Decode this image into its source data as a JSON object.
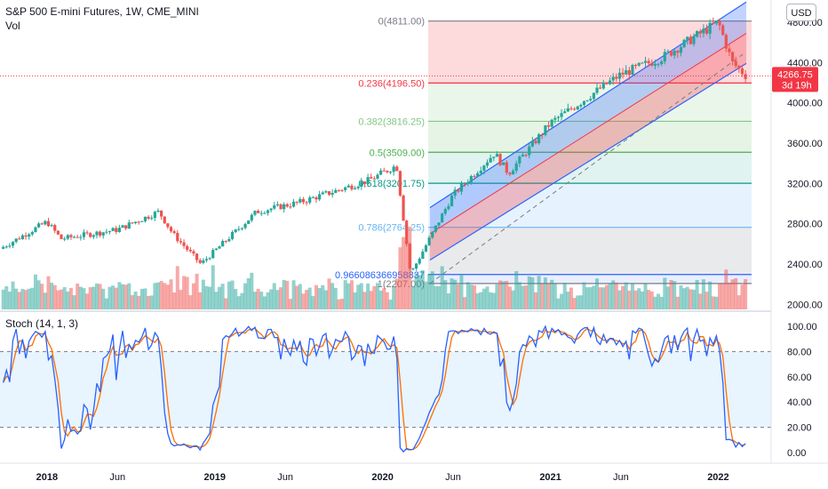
{
  "header": {
    "symbol_line": "S&P 500 E-mini Futures, 1W, CME_MINI",
    "vol_label": "Vol"
  },
  "currency_button": "USD",
  "price_badge": {
    "value": "4266.75",
    "countdown": "3d 19h"
  },
  "stoch_label": "Stoch (14, 1, 3)",
  "fib_levels": [
    {
      "label": "0(4811.00)",
      "value": 4811,
      "color": "#787b86"
    },
    {
      "label": "0.236(4196.50)",
      "value": 4196.5,
      "color": "#f23645"
    },
    {
      "label": "0.382(3816.25)",
      "value": 3816.25,
      "color": "#81c784"
    },
    {
      "label": "0.5(3509.00)",
      "value": 3509,
      "color": "#4caf50"
    },
    {
      "label": "0.618(3201.75)",
      "value": 3201.75,
      "color": "#089981"
    },
    {
      "label": "0.786(2764.25)",
      "value": 2764.25,
      "color": "#64b5f6"
    },
    {
      "label": "0.966086366958837",
      "value": 2296,
      "color": "#2962ff"
    },
    {
      "label": "1(2207.00)",
      "value": 2207,
      "color": "#787b86"
    }
  ],
  "price_axis": [
    "4800.00",
    "4400.00",
    "4000.00",
    "3600.00",
    "3200.00",
    "2800.00",
    "2400.00",
    "2000.00"
  ],
  "stoch_axis": [
    "100.00",
    "80.00",
    "60.00",
    "40.00",
    "20.00",
    "0.00"
  ],
  "time_axis": [
    "2018",
    "Jun",
    "2019",
    "Jun",
    "2020",
    "Jun",
    "2021",
    "Jun",
    "2022"
  ],
  "colors": {
    "up": "#26a69a",
    "down": "#ef5350",
    "stoch_k": "#2962ff",
    "stoch_d": "#ff6d00",
    "channel": "#2962ff",
    "price_badge": "#f23645"
  },
  "chart_data": {
    "type": "candlestick",
    "timeframe": "1W",
    "ylim": [
      1950,
      5020
    ],
    "close_series": [
      {
        "date": "2017-09",
        "close": 2500
      },
      {
        "date": "2018-01",
        "close": 2820
      },
      {
        "date": "2018-02",
        "close": 2650
      },
      {
        "date": "2018-06",
        "close": 2740
      },
      {
        "date": "2018-09",
        "close": 2920
      },
      {
        "date": "2018-10",
        "close": 2700
      },
      {
        "date": "2018-12",
        "close": 2400
      },
      {
        "date": "2019-04",
        "close": 2920
      },
      {
        "date": "2019-07",
        "close": 3010
      },
      {
        "date": "2019-12",
        "close": 3230
      },
      {
        "date": "2020-02",
        "close": 3380
      },
      {
        "date": "2020-03",
        "close": 2300
      },
      {
        "date": "2020-06",
        "close": 3080
      },
      {
        "date": "2020-09",
        "close": 3500
      },
      {
        "date": "2020-10",
        "close": 3300
      },
      {
        "date": "2021-01",
        "close": 3800
      },
      {
        "date": "2021-06",
        "close": 4280
      },
      {
        "date": "2021-09",
        "close": 4450
      },
      {
        "date": "2022-01",
        "close": 4800
      },
      {
        "date": "2022-02",
        "close": 4400
      },
      {
        "date": "2022-03",
        "close": 4266.75
      }
    ],
    "stochastic": {
      "k": 14,
      "smooth_k": 1,
      "d": 3,
      "overbought": 80,
      "oversold": 20,
      "range": [
        0,
        100
      ]
    }
  }
}
